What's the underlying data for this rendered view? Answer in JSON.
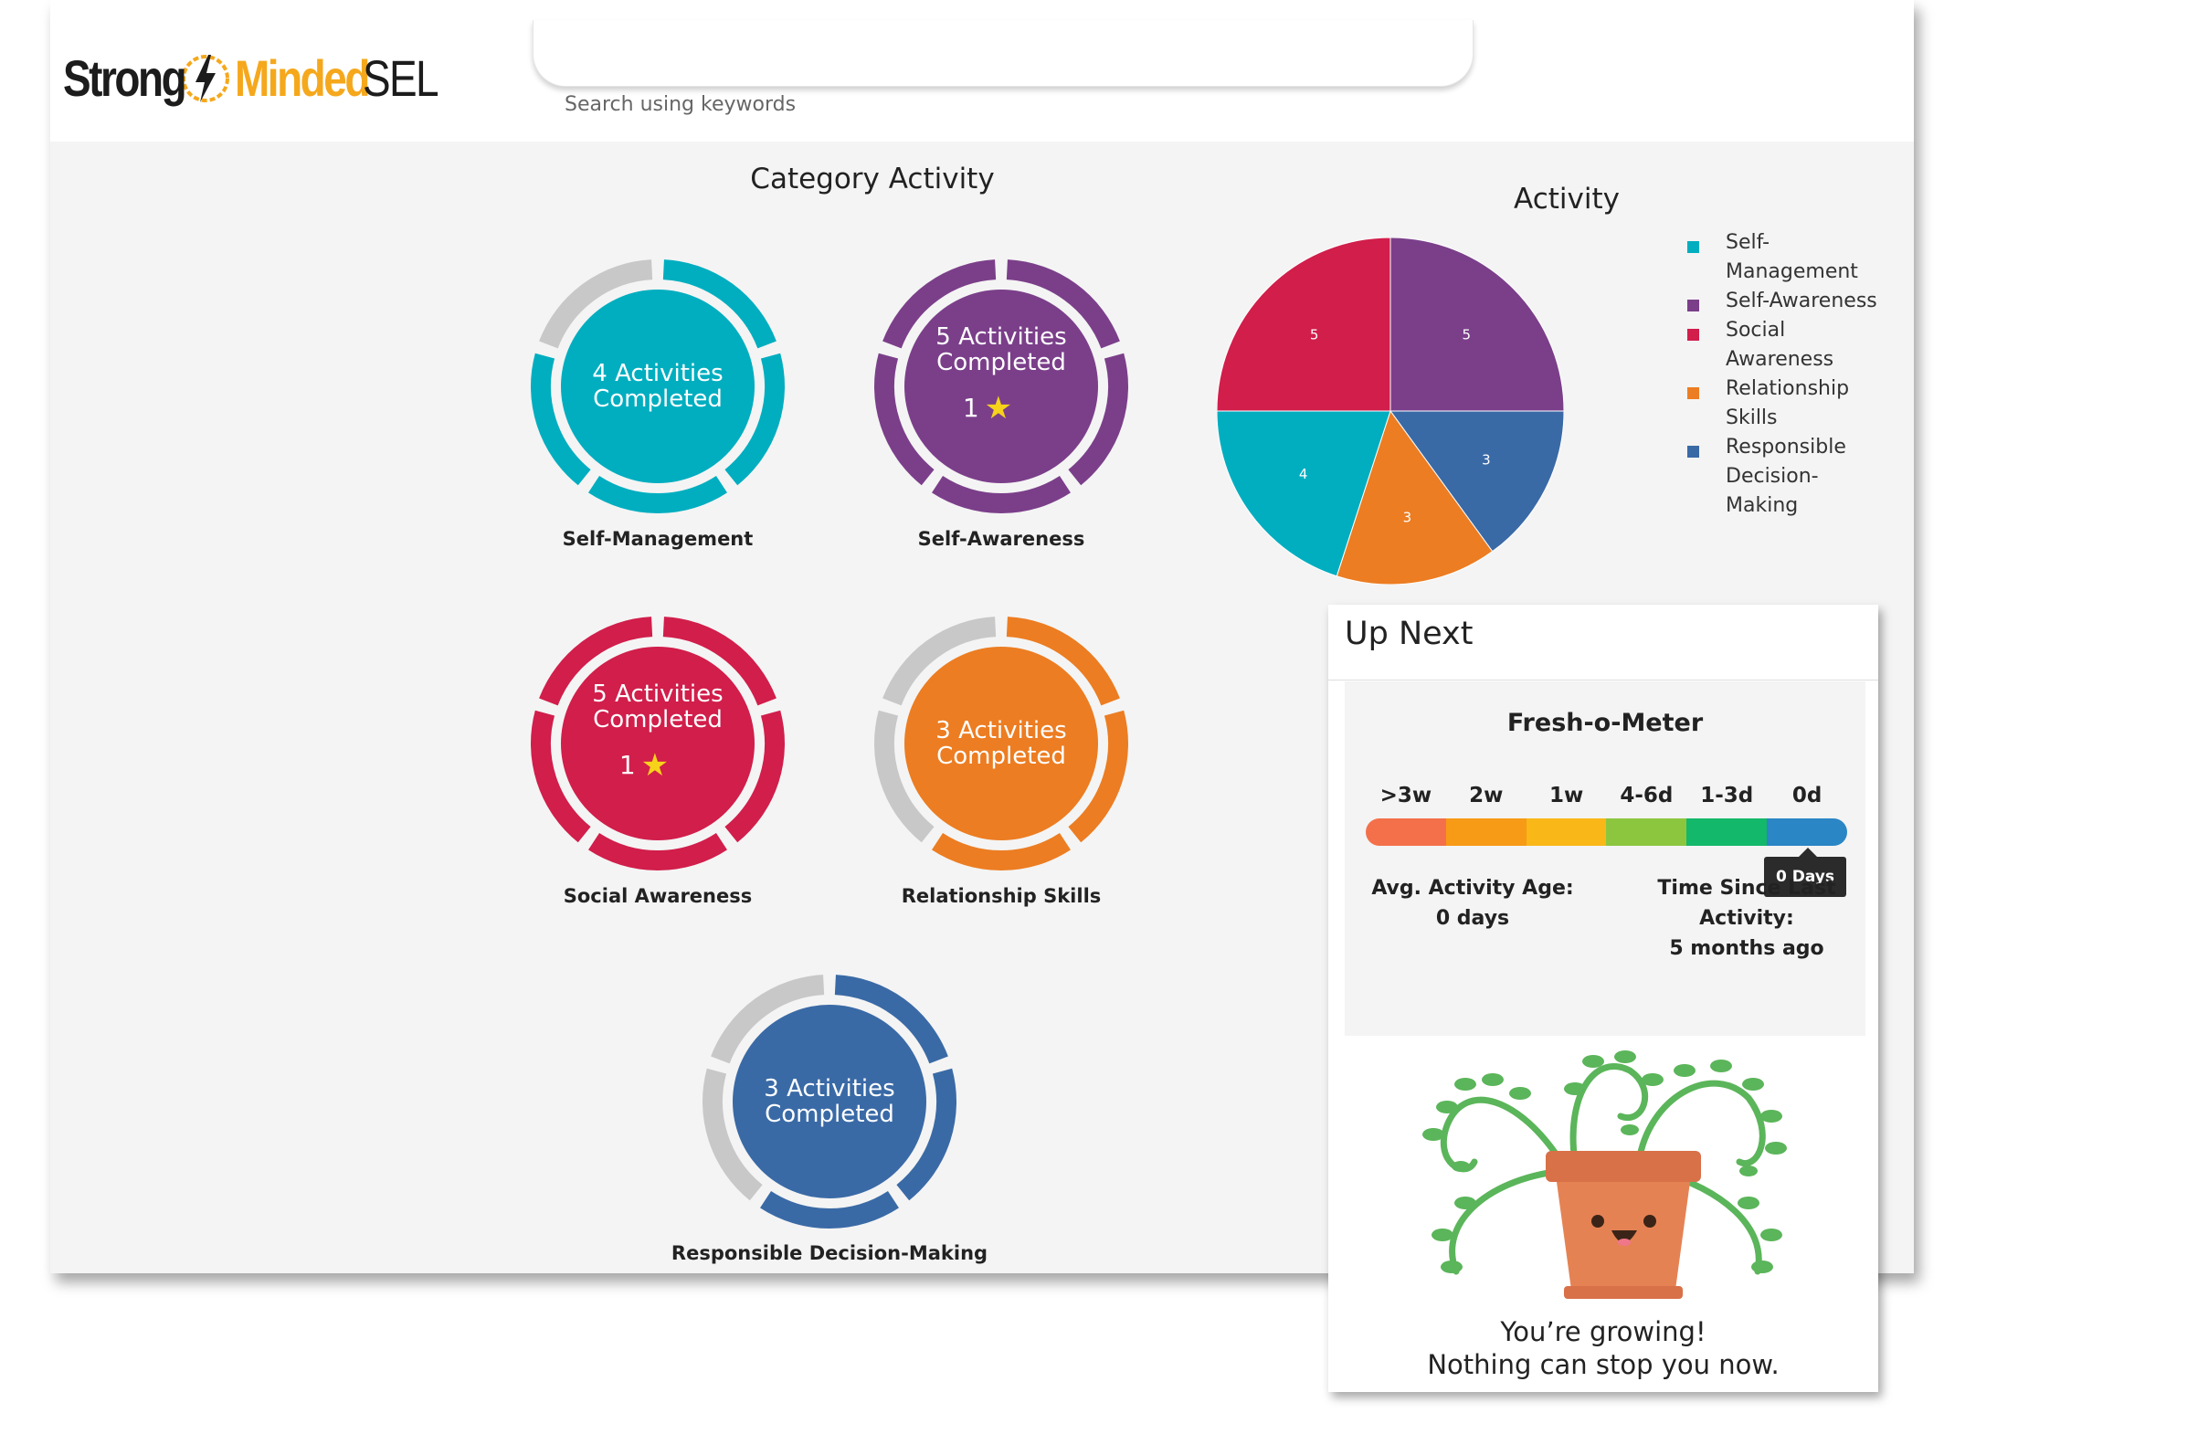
{
  "brand": {
    "part1": "Strong",
    "part2": "Minded",
    "part3": "SEL"
  },
  "search": {
    "placeholder": "",
    "label": "Search using keywords"
  },
  "category_activity": {
    "title": "Category Activity",
    "categories": [
      {
        "name": "Self-Management",
        "line1": "4 Activities",
        "line2": "Completed",
        "stars": "",
        "color": "#00aec0"
      },
      {
        "name": "Self-Awareness",
        "line1": "5 Activities",
        "line2": "Completed",
        "stars": "1",
        "color": "#7b3f8a"
      },
      {
        "name": "Social Awareness",
        "line1": "5 Activities",
        "line2": "Completed",
        "stars": "1",
        "color": "#d11e4b"
      },
      {
        "name": "Relationship Skills",
        "line1": "3 Activities",
        "line2": "Completed",
        "stars": "",
        "color": "#ec7d22"
      },
      {
        "name": "Responsible Decision-Making",
        "line1": "3 Activities",
        "line2": "Completed",
        "stars": "",
        "color": "#3a6aa6"
      }
    ]
  },
  "chart_data": {
    "type": "pie",
    "title": "Activity",
    "legend_position": "right",
    "slices": [
      {
        "label": "Self-Awareness",
        "value": 5,
        "color": "#7b3f8a"
      },
      {
        "label": "Responsible Decision-Making",
        "value": 3,
        "color": "#3a6aa6"
      },
      {
        "label": "Relationship Skills",
        "value": 3,
        "color": "#ec7d22"
      },
      {
        "label": "Self-Management",
        "value": 4,
        "color": "#00aec0"
      },
      {
        "label": "Social Awareness",
        "value": 5,
        "color": "#d11e4b"
      }
    ],
    "legend": [
      {
        "label": "Self-Management",
        "color": "#00aec0"
      },
      {
        "label": "Self-Awareness",
        "color": "#7b3f8a"
      },
      {
        "label": "Social Awareness",
        "color": "#d11e4b"
      },
      {
        "label": "Relationship Skills",
        "color": "#ec7d22"
      },
      {
        "label": "Responsible Decision-Making",
        "color": "#3a6aa6"
      }
    ]
  },
  "up_next": {
    "title": "Up Next",
    "meter": {
      "title": "Fresh-o-Meter",
      "labels": [
        ">3w",
        "2w",
        "1w",
        "4-6d",
        "1-3d",
        "0d"
      ],
      "colors": [
        "#f4704a",
        "#f79a16",
        "#f9b718",
        "#8cc63f",
        "#14b86a",
        "#2b86c5"
      ],
      "tooltip": "0 Days"
    },
    "avg_label": "Avg. Activity Age:",
    "avg_value": "0 days",
    "since_label": "Time Since Last Activity:",
    "since_value": "5 months ago",
    "message_line1": "You’re growing!",
    "message_line2": "Nothing can stop you now."
  }
}
